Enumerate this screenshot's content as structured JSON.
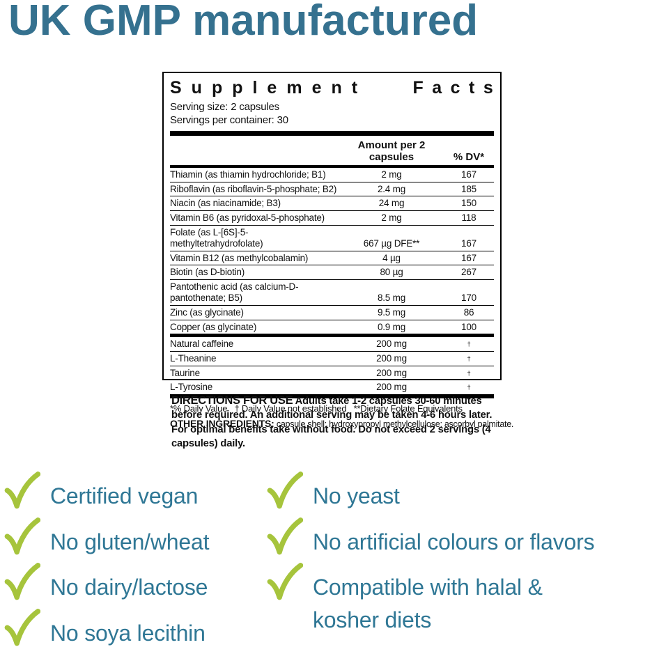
{
  "page_title": "UK GMP manufactured",
  "colors": {
    "accent_teal": "#35718f",
    "checklist_text_teal": "#2f7795",
    "check_green": "#a6c43c",
    "label_ink": "#111111"
  },
  "supplement_facts": {
    "title_word1": "Supplement",
    "title_word2": "Facts",
    "serving_size": "Serving size: 2 capsules",
    "servings_per_container": "Servings per container: 30",
    "columns": {
      "amount": "Amount per 2 capsules",
      "dv": "% DV*"
    },
    "nutrients": [
      {
        "name": "Thiamin (as thiamin hydrochloride; B1)",
        "amount": "2 mg",
        "dv": "167"
      },
      {
        "name": "Riboflavin (as riboflavin-5-phosphate; B2)",
        "amount": "2.4 mg",
        "dv": "185"
      },
      {
        "name": "Niacin (as niacinamide; B3)",
        "amount": "24 mg",
        "dv": "150"
      },
      {
        "name": "Vitamin B6 (as pyridoxal-5-phosphate)",
        "amount": "2 mg",
        "dv": "118"
      },
      {
        "name": "Folate (as L-[6S]-5-methyltetrahydrofolate)",
        "amount": "667 µg DFE**",
        "dv": "167"
      },
      {
        "name": "Vitamin B12 (as methylcobalamin)",
        "amount": "4 µg",
        "dv": "167"
      },
      {
        "name": "Biotin (as D-biotin)",
        "amount": "80 µg",
        "dv": "267"
      },
      {
        "name": "Pantothenic acid (as calcium-D-pantothenate; B5)",
        "amount": "8.5 mg",
        "dv": "170"
      },
      {
        "name": "Zinc (as glycinate)",
        "amount": "9.5 mg",
        "dv": "86"
      },
      {
        "name": "Copper (as glycinate)",
        "amount": "0.9 mg",
        "dv": "100"
      }
    ],
    "actives": [
      {
        "name": "Natural caffeine",
        "amount": "200 mg",
        "dv": "†"
      },
      {
        "name": "L-Theanine",
        "amount": "200 mg",
        "dv": "†"
      },
      {
        "name": "Taurine",
        "amount": "200 mg",
        "dv": "†"
      },
      {
        "name": "L-Tyrosine",
        "amount": "200 mg",
        "dv": "†"
      }
    ],
    "footnote": "*% Daily Value   † Daily Value not established   **Dietary Folate Equivalents",
    "other_ingredients_label": "OTHER INGREDIENTS:",
    "other_ingredients_text": " capsule shell: hydroxypropyl methylcellulose; ascorbyl palmitate."
  },
  "directions": {
    "label": "DIRECTIONS FOR USE",
    "text": "  Adults take 1-2 capsules 30-60 minutes before required. An additional serving may be taken 4-6 hours later. For optimal benefits take without food. Do not exceed 2 servings (4 capsules) daily."
  },
  "checklist": {
    "left": [
      "Certified vegan",
      "No gluten/wheat",
      "No dairy/lactose",
      "No soya lecithin"
    ],
    "right": [
      "No yeast",
      "No artificial colours or flavors",
      "Compatible with halal &\nkosher diets"
    ]
  }
}
